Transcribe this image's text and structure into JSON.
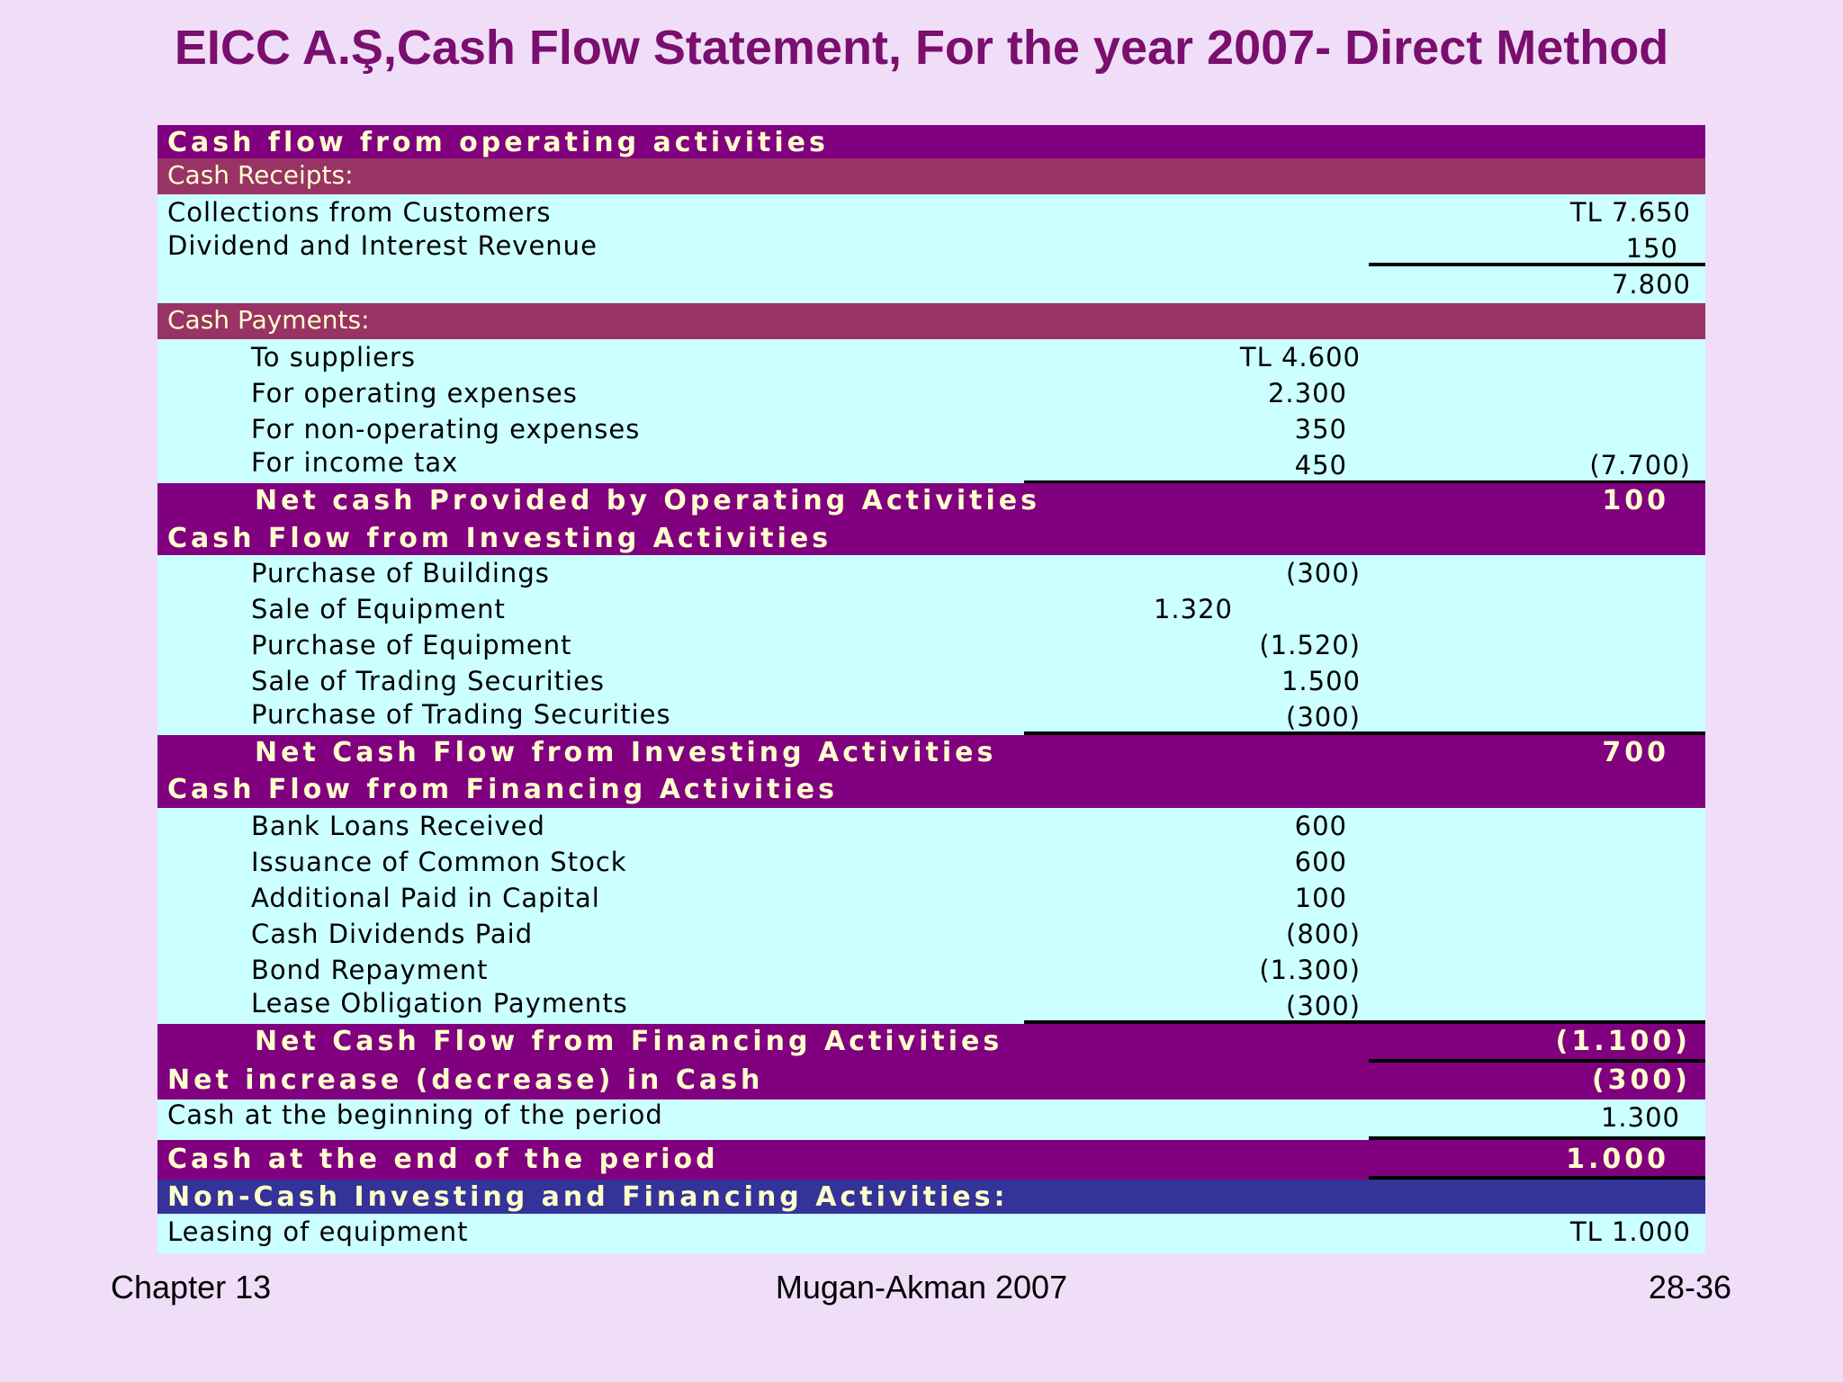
{
  "title": "EICC A.Ş,Cash Flow Statement, For the year 2007- Direct Method",
  "operating": {
    "header": "Cash flow from operating activities",
    "receipts_header": "Cash Receipts:",
    "collections_label": "Collections from Customers",
    "collections_value": "TL 7.650",
    "dividend_label": "Dividend and Interest Revenue",
    "dividend_value": "150",
    "receipts_total": "7.800",
    "payments_header": "Cash Payments:",
    "suppliers_label": "To suppliers",
    "suppliers_value": "TL 4.600",
    "opex_label": "For operating expenses",
    "opex_value": "2.300",
    "nonop_label": "For non-operating expenses",
    "nonop_value": "350",
    "tax_label": "For income tax",
    "tax_value": "450",
    "payments_total": "(7.700)",
    "net_label": "Net cash Provided by Operating Activities",
    "net_value": "100"
  },
  "investing": {
    "header": "Cash Flow from Investing Activities",
    "buildings_label": "Purchase of Buildings",
    "buildings_value": "(300)",
    "sale_equip_label": "Sale of Equipment",
    "sale_equip_value": "1.320",
    "purch_equip_label": "Purchase of Equipment",
    "purch_equip_value": "(1.520)",
    "sale_sec_label": "Sale of Trading Securities",
    "sale_sec_value": "1.500",
    "purch_sec_label": "Purchase of Trading Securities",
    "purch_sec_value": "(300)",
    "net_label": "Net Cash Flow from Investing Activities",
    "net_value": "700"
  },
  "financing": {
    "header": "Cash Flow from Financing Activities",
    "loans_label": "Bank Loans Received",
    "loans_value": "600",
    "stock_label": "Issuance of Common Stock",
    "stock_value": "600",
    "apic_label": "Additional Paid in Capital",
    "apic_value": "100",
    "div_label": "Cash Dividends Paid",
    "div_value": "(800)",
    "bond_label": "Bond Repayment",
    "bond_value": "(1.300)",
    "lease_label": "Lease Obligation Payments",
    "lease_value": "(300)",
    "net_label": "Net Cash Flow from Financing Activities",
    "net_value": "(1.100)"
  },
  "summary": {
    "net_increase_label": "Net increase (decrease) in Cash",
    "net_increase_value": "(300)",
    "beginning_label": "Cash at the beginning of the period",
    "beginning_value": "1.300",
    "end_label": "Cash at the end of the period",
    "end_value": "1.000"
  },
  "noncash": {
    "header": "Non-Cash Investing and Financing Activities:",
    "leasing_label": "Leasing of equipment",
    "leasing_value": "TL 1.000"
  },
  "footer": {
    "left": "Chapter 13",
    "center": "Mugan-Akman 2007",
    "right": "28-36"
  },
  "colors": {
    "background": "#f0def9",
    "title": "#7a0f6e",
    "section_header": "#800080",
    "subsection_header": "#993366",
    "data_row": "#ccffff",
    "noncash_header": "#333399",
    "header_text": "#ffffcc"
  }
}
